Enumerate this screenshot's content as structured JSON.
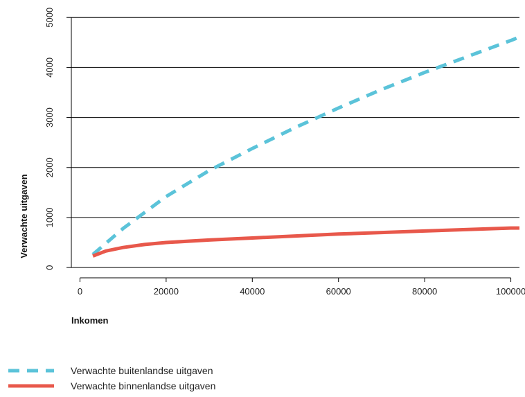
{
  "chart_data": {
    "type": "line",
    "title": "",
    "xlabel": "Inkomen",
    "ylabel": "Verwachte uitgaven",
    "xlim": [
      -2000,
      102000
    ],
    "ylim": [
      -40,
      5100
    ],
    "x_ticks": [
      0,
      20000,
      40000,
      60000,
      80000,
      100000
    ],
    "y_ticks": [
      0,
      1000,
      2000,
      3000,
      4000,
      5000
    ],
    "grid": "horizontal",
    "legend_position": "bottom-left",
    "series": [
      {
        "name": "Verwachte buitenlandse uitgaven",
        "color": "#5BC3D9",
        "style": "dashed",
        "x": [
          3000,
          10000,
          20000,
          30000,
          40000,
          50000,
          60000,
          70000,
          80000,
          90000,
          100000,
          102000
        ],
        "y": [
          260,
          780,
          1420,
          1940,
          2380,
          2800,
          3190,
          3560,
          3900,
          4220,
          4540,
          4610
        ]
      },
      {
        "name": "Verwachte binnenlandse uitgaven",
        "color": "#E8584B",
        "style": "solid",
        "x": [
          3000,
          6000,
          10000,
          15000,
          20000,
          30000,
          40000,
          50000,
          60000,
          70000,
          80000,
          90000,
          100000,
          102000
        ],
        "y": [
          230,
          330,
          400,
          460,
          500,
          550,
          590,
          630,
          670,
          700,
          730,
          760,
          790,
          790
        ]
      }
    ]
  }
}
